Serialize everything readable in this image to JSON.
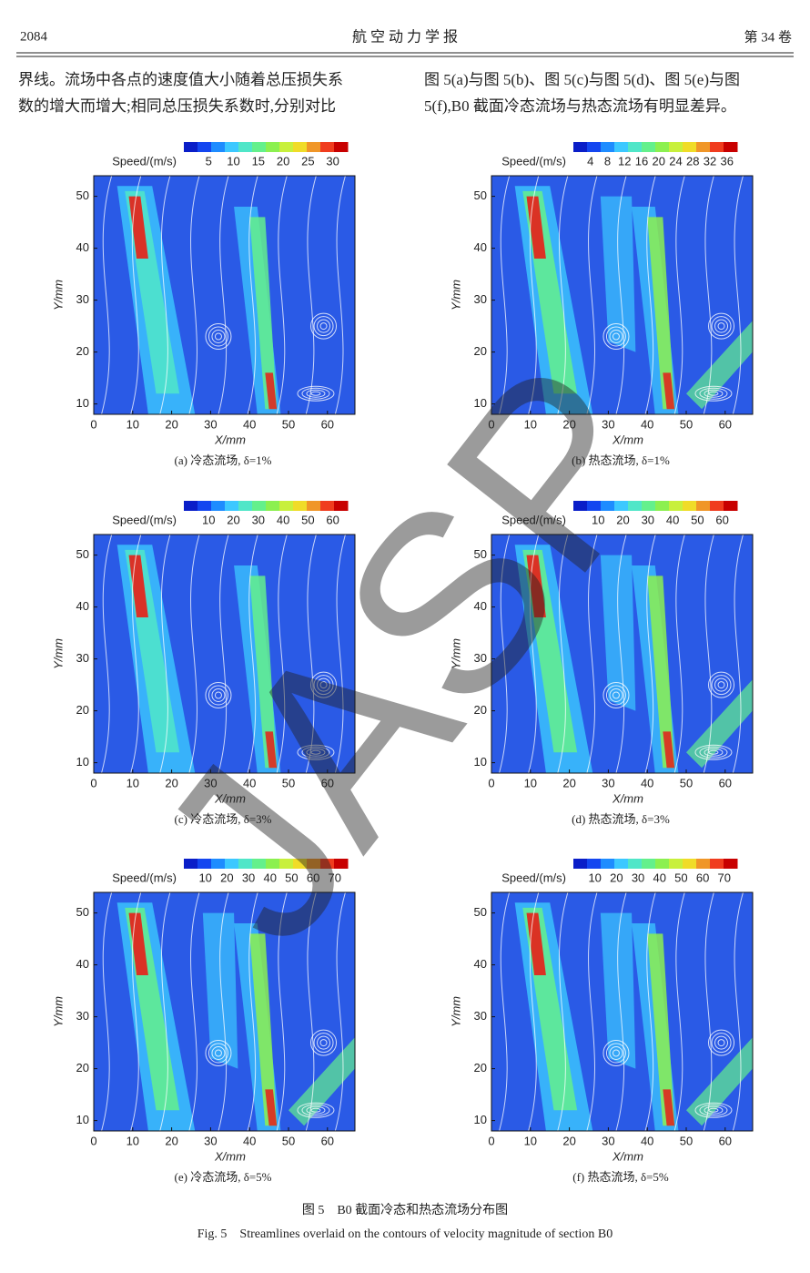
{
  "header": {
    "page": "2084",
    "journal": "航 空 动 力 学 报",
    "volume": "第 34 卷"
  },
  "body": {
    "left": [
      "界线。流场中各点的速度值大小随着总压损失系",
      "数的增大而增大;相同总压损失系数时,分别对比"
    ],
    "right": [
      "图 5(a)与图 5(b)、图 5(c)与图 5(d)、图 5(e)与图",
      "5(f),B0 截面冷态流场与热态流场有明显差异。"
    ]
  },
  "figure": {
    "panels": [
      {
        "colorbar_label": "Speed/(m/s)",
        "colorbar_ticks": [
          5,
          10,
          15,
          20,
          25,
          30
        ],
        "xlabel": "X/mm",
        "ylabel": "Y/mm",
        "xticks": [
          0,
          10,
          20,
          30,
          40,
          50,
          60
        ],
        "yticks": [
          10,
          20,
          30,
          40,
          50
        ],
        "caption": "(a) 冷态流场, δ=1%"
      },
      {
        "colorbar_label": "Speed/(m/s)",
        "colorbar_ticks": [
          4,
          8,
          12,
          16,
          20,
          24,
          28,
          32,
          36
        ],
        "xlabel": "X/mm",
        "ylabel": "Y/mm",
        "xticks": [
          0,
          10,
          20,
          30,
          40,
          50,
          60
        ],
        "yticks": [
          10,
          20,
          30,
          40,
          50
        ],
        "caption": "(b) 热态流场, δ=1%"
      },
      {
        "colorbar_label": "Speed/(m/s)",
        "colorbar_ticks": [
          10,
          20,
          30,
          40,
          50,
          60
        ],
        "xlabel": "X/mm",
        "ylabel": "Y/mm",
        "xticks": [
          0,
          10,
          20,
          30,
          40,
          50,
          60
        ],
        "yticks": [
          10,
          20,
          30,
          40,
          50
        ],
        "caption": "(c) 冷态流场, δ=3%"
      },
      {
        "colorbar_label": "Speed/(m/s)",
        "colorbar_ticks": [
          10,
          20,
          30,
          40,
          50,
          60
        ],
        "xlabel": "X/mm",
        "ylabel": "Y/mm",
        "xticks": [
          0,
          10,
          20,
          30,
          40,
          50,
          60
        ],
        "yticks": [
          10,
          20,
          30,
          40,
          50
        ],
        "caption": "(d) 热态流场, δ=3%"
      },
      {
        "colorbar_label": "Speed/(m/s)",
        "colorbar_ticks": [
          10,
          20,
          30,
          40,
          50,
          60,
          70
        ],
        "xlabel": "X/mm",
        "ylabel": "Y/mm",
        "xticks": [
          0,
          10,
          20,
          30,
          40,
          50,
          60
        ],
        "yticks": [
          10,
          20,
          30,
          40,
          50
        ],
        "caption": "(e) 冷态流场, δ=5%"
      },
      {
        "colorbar_label": "Speed/(m/s)",
        "colorbar_ticks": [
          10,
          20,
          30,
          40,
          50,
          60,
          70
        ],
        "xlabel": "X/mm",
        "ylabel": "Y/mm",
        "xticks": [
          0,
          10,
          20,
          30,
          40,
          50,
          60
        ],
        "yticks": [
          10,
          20,
          30,
          40,
          50
        ],
        "caption": "(f) 热态流场, δ=5%"
      }
    ],
    "caption_cn": "图 5　B0 截面冷态和热态流场分布图",
    "caption_en": "Fig. 5　Streamlines overlaid on the contours of velocity magnitude of section B0"
  },
  "watermark": "JASP"
}
